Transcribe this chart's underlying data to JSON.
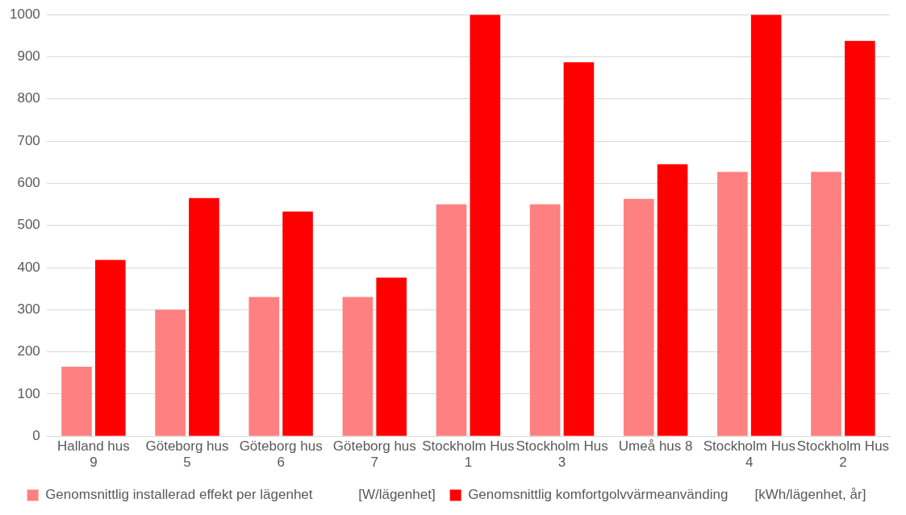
{
  "chart_data": {
    "type": "bar",
    "categories": [
      "Halland hus 9",
      "Göteborg hus 5",
      "Göteborg hus 6",
      "Göteborg hus 7",
      "Stockholm Hus 1",
      "Stockholm Hus 3",
      "Umeå hus 8",
      "Stockholm Hus 4",
      "Stockholm Hus 2"
    ],
    "series": [
      {
        "name": "Genomsnittlig installerad effekt per lägenhet            [W/lägenhet]",
        "color": "#ff8080",
        "values": [
          165,
          300,
          330,
          330,
          550,
          550,
          563,
          627,
          627
        ]
      },
      {
        "name": "Genomsnittlig komfortgolvvärmeanvänding       [kWh/lägenhet, år]",
        "color": "#ff0000",
        "values": [
          418,
          565,
          533,
          376,
          1000,
          887,
          645,
          1000,
          938
        ]
      }
    ],
    "ylim": [
      0,
      1000
    ],
    "yticks": [
      0,
      100,
      200,
      300,
      400,
      500,
      600,
      700,
      800,
      900,
      1000
    ],
    "grid": "y",
    "legend": "bottom"
  }
}
